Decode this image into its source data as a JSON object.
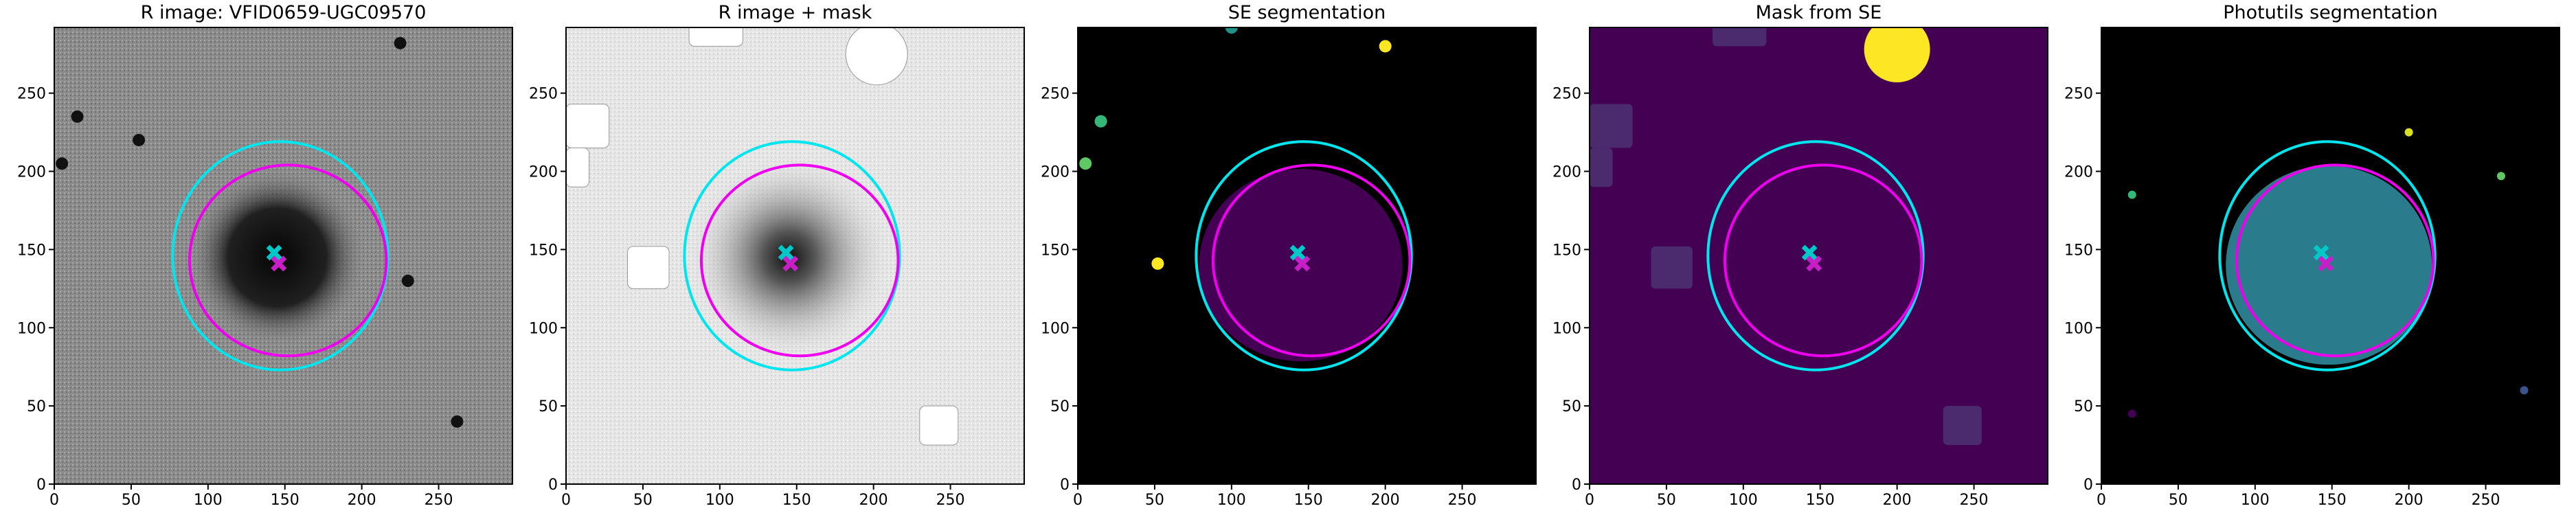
{
  "chart_data": [
    {
      "type": "image",
      "title": "R image: VFID0659-UGC09570",
      "xlim": [
        0,
        298
      ],
      "ylim": [
        0,
        292
      ],
      "xticks": [
        0,
        50,
        100,
        150,
        200,
        250
      ],
      "yticks": [
        0,
        50,
        100,
        150,
        200,
        250
      ],
      "ellipses": [
        {
          "color": "#00e5ee",
          "x": 147,
          "y": 146,
          "rx": 70,
          "ry": 73
        },
        {
          "color": "#ee00ee",
          "x": 152,
          "y": 143,
          "rx": 64,
          "ry": 61
        }
      ],
      "markers": [
        {
          "color": "#00c8c8",
          "x": 143,
          "y": 148
        },
        {
          "color": "#c81ec8",
          "x": 146,
          "y": 141
        }
      ]
    },
    {
      "type": "image",
      "title": "R image + mask",
      "xlim": [
        0,
        298
      ],
      "ylim": [
        0,
        292
      ],
      "xticks": [
        0,
        50,
        100,
        150,
        200,
        250
      ],
      "yticks": [
        0,
        50,
        100,
        150,
        200,
        250
      ],
      "ellipses": [
        {
          "color": "#00e5ee",
          "x": 147,
          "y": 146,
          "rx": 70,
          "ry": 73
        },
        {
          "color": "#ee00ee",
          "x": 152,
          "y": 143,
          "rx": 64,
          "ry": 61
        }
      ],
      "markers": [
        {
          "color": "#00c8c8",
          "x": 143,
          "y": 148
        },
        {
          "color": "#c81ec8",
          "x": 146,
          "y": 141
        }
      ]
    },
    {
      "type": "image",
      "title": "SE segmentation",
      "xlim": [
        0,
        298
      ],
      "ylim": [
        0,
        292
      ],
      "xticks": [
        0,
        50,
        100,
        150,
        200,
        250
      ],
      "yticks": [
        0,
        50,
        100,
        150,
        200,
        250
      ],
      "ellipses": [
        {
          "color": "#00e5ee",
          "x": 147,
          "y": 146,
          "rx": 70,
          "ry": 73
        },
        {
          "color": "#ee00ee",
          "x": 152,
          "y": 143,
          "rx": 64,
          "ry": 61
        }
      ],
      "markers": [
        {
          "color": "#00c8c8",
          "x": 143,
          "y": 148
        },
        {
          "color": "#c81ec8",
          "x": 146,
          "y": 141
        }
      ]
    },
    {
      "type": "image",
      "title": "Mask from SE",
      "xlim": [
        0,
        298
      ],
      "ylim": [
        0,
        292
      ],
      "xticks": [
        0,
        50,
        100,
        150,
        200,
        250
      ],
      "yticks": [
        0,
        50,
        100,
        150,
        200,
        250
      ],
      "ellipses": [
        {
          "color": "#00e5ee",
          "x": 147,
          "y": 146,
          "rx": 70,
          "ry": 73
        },
        {
          "color": "#ee00ee",
          "x": 152,
          "y": 143,
          "rx": 64,
          "ry": 61
        }
      ],
      "markers": [
        {
          "color": "#00c8c8",
          "x": 143,
          "y": 148
        },
        {
          "color": "#c81ec8",
          "x": 146,
          "y": 141
        }
      ]
    },
    {
      "type": "image",
      "title": "Photutils segmentation",
      "xlim": [
        0,
        298
      ],
      "ylim": [
        0,
        292
      ],
      "xticks": [
        0,
        50,
        100,
        150,
        200,
        250
      ],
      "yticks": [
        0,
        50,
        100,
        150,
        200,
        250
      ],
      "ellipses": [
        {
          "color": "#00e5ee",
          "x": 147,
          "y": 146,
          "rx": 70,
          "ry": 73
        },
        {
          "color": "#ee00ee",
          "x": 152,
          "y": 143,
          "rx": 64,
          "ry": 61
        }
      ],
      "markers": [
        {
          "color": "#00c8c8",
          "x": 143,
          "y": 148
        },
        {
          "color": "#c81ec8",
          "x": 146,
          "y": 141
        }
      ]
    }
  ]
}
